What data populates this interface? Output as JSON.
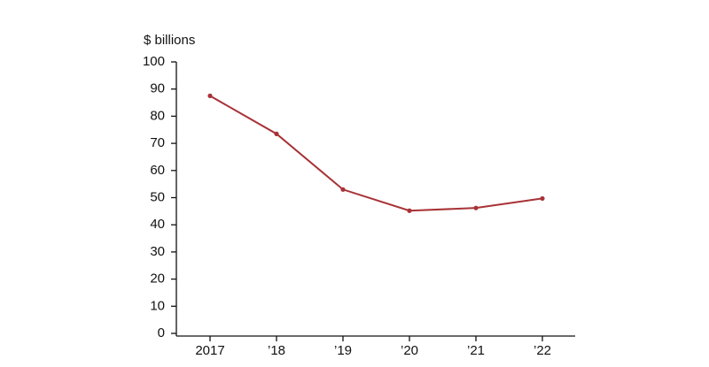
{
  "chart_data": {
    "type": "line",
    "y_label": "$ billions",
    "categories": [
      "2017",
      "’18",
      "’19",
      "’20",
      "’21",
      "’22"
    ],
    "values": [
      87.5,
      73.5,
      53,
      45.2,
      46.2,
      49.7
    ],
    "color": "#a83236",
    "ylim": [
      0,
      100
    ],
    "yticks": [
      0,
      10,
      20,
      30,
      40,
      50,
      60,
      70,
      80,
      90,
      100
    ],
    "grid": false
  }
}
